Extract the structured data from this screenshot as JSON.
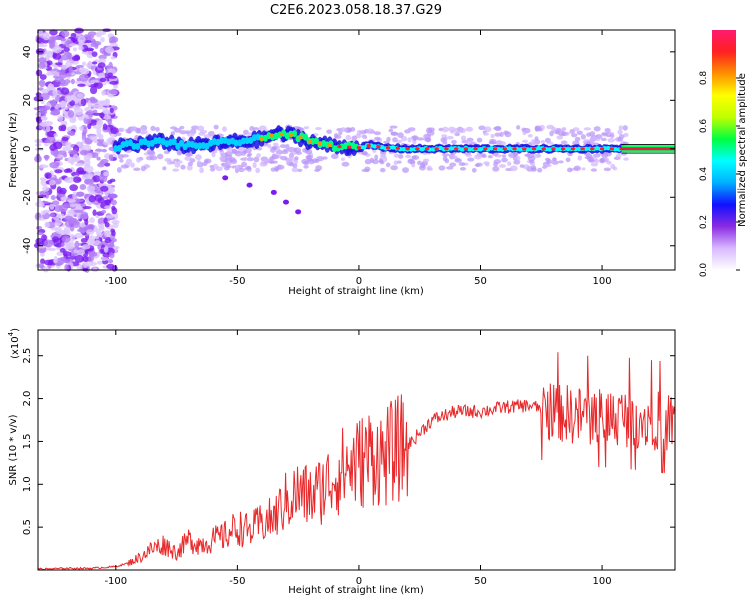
{
  "title": "C2E6.2023.058.18.37.G29",
  "colors": {
    "snr_line": "#e8292b",
    "axis": "#000000",
    "background": "#ffffff"
  },
  "chart_data": [
    {
      "type": "heatmap",
      "xlabel": "Height of straight line (km)",
      "ylabel": "Frequency (Hz)",
      "xlim": [
        -132,
        130
      ],
      "ylim": [
        -50,
        49
      ],
      "xticks": [
        -100,
        -50,
        0,
        50,
        100
      ],
      "yticks": [
        40,
        20,
        0,
        -20,
        -40
      ],
      "colorbar": {
        "label": "Normalized spectral amplitude",
        "range": [
          0,
          1
        ],
        "ticks": [
          "0.0",
          "0.2",
          "0.4",
          "0.6",
          "0.8"
        ],
        "colormap": [
          "#ffffff",
          "#d8b8ff",
          "#8a2be2",
          "#1010ff",
          "#00b0ff",
          "#00ffff",
          "#00ff40",
          "#c0ff00",
          "#ffff00",
          "#ff9000",
          "#ff2020",
          "#ff1a6e"
        ]
      },
      "ridge": {
        "description_points": [
          [
            -100,
            1
          ],
          [
            -90,
            2
          ],
          [
            -80,
            3
          ],
          [
            -70,
            1
          ],
          [
            -60,
            2
          ],
          [
            -50,
            3
          ],
          [
            -40,
            4
          ],
          [
            -35,
            6
          ],
          [
            -30,
            6
          ],
          [
            -25,
            5
          ],
          [
            -20,
            3
          ],
          [
            -15,
            2
          ],
          [
            -10,
            1
          ],
          [
            0,
            0.5
          ],
          [
            5,
            1.5
          ],
          [
            10,
            0.5
          ],
          [
            20,
            0
          ],
          [
            40,
            0
          ],
          [
            60,
            0
          ],
          [
            80,
            0
          ],
          [
            100,
            0
          ],
          [
            106,
            0
          ],
          [
            130,
            0
          ]
        ]
      },
      "secondary_trace": [
        [
          -55,
          -12
        ],
        [
          -45,
          -15
        ],
        [
          -35,
          -18
        ],
        [
          -30,
          -22
        ],
        [
          -25,
          -26
        ]
      ]
    },
    {
      "type": "line",
      "xlabel": "Height of straight line (km)",
      "ylabel": "SNR (10 * v/v)",
      "scale_label": "(x10",
      "scale_exp": "4",
      "scale_close": ")",
      "xlim": [
        -132,
        130
      ],
      "ylim": [
        0,
        2.8
      ],
      "xticks": [
        -100,
        -50,
        0,
        50,
        100
      ],
      "yticks": [
        "0.5",
        "1.0",
        "1.5",
        "2.0",
        "2.5"
      ],
      "series": [
        {
          "x": [
            -132,
            -120,
            -110,
            -100,
            -95,
            -90,
            -85,
            -80,
            -75,
            -70,
            -65,
            -60,
            -55,
            -50,
            -45,
            -40,
            -35,
            -30,
            -25,
            -20,
            -15,
            -10,
            -5,
            0,
            5,
            10,
            15,
            20,
            25,
            30,
            35,
            40,
            50,
            60,
            70,
            80,
            90,
            100,
            110,
            120,
            130
          ],
          "values": [
            0.01,
            0.02,
            0.02,
            0.04,
            0.08,
            0.15,
            0.25,
            0.3,
            0.2,
            0.35,
            0.3,
            0.35,
            0.4,
            0.5,
            0.45,
            0.55,
            0.6,
            0.8,
            0.9,
            0.85,
            0.95,
            1.1,
            1.2,
            1.25,
            1.35,
            1.3,
            1.4,
            1.45,
            1.6,
            1.75,
            1.8,
            1.85,
            1.85,
            1.9,
            1.92,
            1.85,
            1.8,
            1.8,
            1.78,
            1.75,
            1.72
          ]
        }
      ]
    }
  ]
}
